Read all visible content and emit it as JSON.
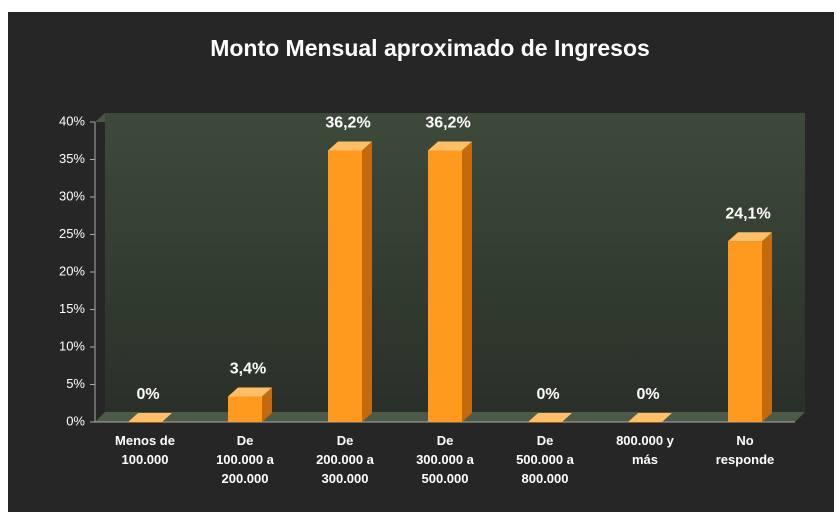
{
  "chart_data": {
    "type": "bar3d",
    "title": "Monto Mensual aproximado de Ingresos",
    "categories": [
      "Menos de 100.000",
      "De 100.000 a 200.000",
      "De 200.000 a 300.000",
      "De 300.000 a 500.000",
      "De 500.000 a 800.000",
      "800.000 y más",
      "No responde"
    ],
    "values": [
      0,
      3.4,
      36.2,
      36.2,
      0,
      0,
      24.1
    ],
    "value_labels": [
      "0%",
      "3,4%",
      "36,2%",
      "36,2%",
      "0%",
      "0%",
      "24,1%"
    ],
    "color": "#ff9a1e",
    "ylim": [
      0,
      40
    ],
    "yticks": [
      {
        "value": 0,
        "label": "0%"
      },
      {
        "value": 5,
        "label": "5%"
      },
      {
        "value": 10,
        "label": "10%"
      },
      {
        "value": 15,
        "label": "15%"
      },
      {
        "value": 20,
        "label": "20%"
      },
      {
        "value": 25,
        "label": "25%"
      },
      {
        "value": 30,
        "label": "30%"
      },
      {
        "value": 35,
        "label": "35%"
      },
      {
        "value": 40,
        "label": "40%"
      }
    ],
    "grid": false
  }
}
